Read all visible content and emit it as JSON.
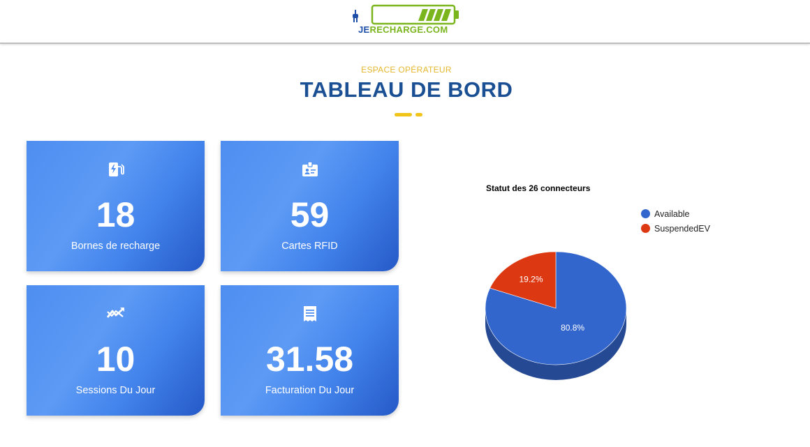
{
  "header": {
    "logo": {
      "part1": "JE",
      "part2": "RECHARGE.COM"
    }
  },
  "page": {
    "subtitle": "ESPACE OPÉRATEUR",
    "title": "TABLEAU DE BORD"
  },
  "cards": [
    {
      "value": "18",
      "label": "Bornes de recharge",
      "icon": "ev-station-icon"
    },
    {
      "value": "59",
      "label": "Cartes RFID",
      "icon": "id-badge-icon"
    },
    {
      "value": "10",
      "label": "Sessions Du Jour",
      "icon": "trend-icon"
    },
    {
      "value": "31.58",
      "label": "Facturation Du Jour",
      "icon": "receipt-icon"
    }
  ],
  "colors": {
    "brand_blue": "#1b4f93",
    "accent_yellow": "#f0c419",
    "logo_green": "#7ab51d",
    "available": "#3366cc",
    "suspended": "#dc3912"
  },
  "chart_data": {
    "type": "pie",
    "title": "Statut des 26 connecteurs",
    "categories": [
      "Available",
      "SuspendedEV"
    ],
    "values": [
      80.8,
      19.2
    ],
    "labels": [
      "80.8%",
      "19.2%"
    ],
    "colors": [
      "#3366cc",
      "#dc3912"
    ],
    "legend_position": "right",
    "is3d": true
  }
}
